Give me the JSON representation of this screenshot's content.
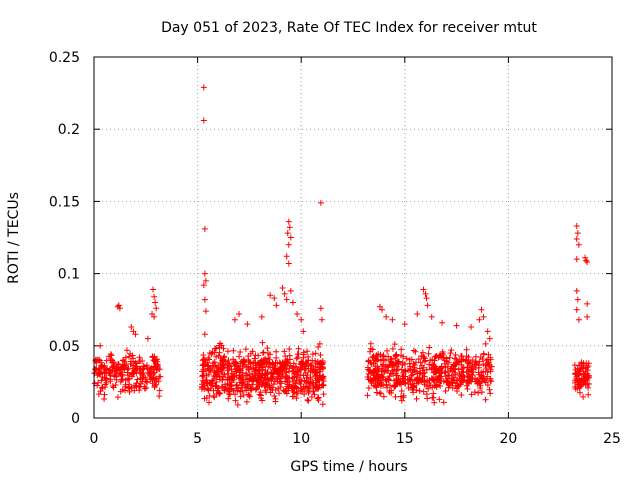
{
  "chart_data": {
    "type": "scatter",
    "title": "Day 051 of 2023, Rate Of TEC Index for receiver mtut",
    "xlabel": "GPS time / hours",
    "ylabel": "ROTI / TECUs",
    "xlim": [
      0,
      25
    ],
    "ylim": [
      0,
      0.25
    ],
    "x_ticks": [
      "0",
      "5",
      "10",
      "15",
      "20",
      "25"
    ],
    "y_ticks": [
      "0",
      "0.05",
      "0.1",
      "0.15",
      "0.2",
      "0.25"
    ],
    "grid": true,
    "marker": "plus",
    "color": "#ff0000",
    "clusters": [
      {
        "x_start": 0.0,
        "x_end": 3.2,
        "y_min": 0.012,
        "y_max": 0.05,
        "n": 260
      },
      {
        "x_start": 5.2,
        "x_end": 11.1,
        "y_min": 0.006,
        "y_max": 0.055,
        "n": 700
      },
      {
        "x_start": 13.2,
        "x_end": 19.2,
        "y_min": 0.008,
        "y_max": 0.055,
        "n": 560
      },
      {
        "x_start": 23.2,
        "x_end": 23.9,
        "y_min": 0.012,
        "y_max": 0.045,
        "n": 80
      }
    ],
    "points": [
      {
        "x": 5.3,
        "y": 0.229
      },
      {
        "x": 5.3,
        "y": 0.206
      },
      {
        "x": 10.95,
        "y": 0.149
      },
      {
        "x": 5.35,
        "y": 0.131
      },
      {
        "x": 9.4,
        "y": 0.136
      },
      {
        "x": 9.45,
        "y": 0.132
      },
      {
        "x": 9.35,
        "y": 0.128
      },
      {
        "x": 9.5,
        "y": 0.125
      },
      {
        "x": 9.4,
        "y": 0.12
      },
      {
        "x": 9.3,
        "y": 0.112
      },
      {
        "x": 9.4,
        "y": 0.107
      },
      {
        "x": 5.35,
        "y": 0.1
      },
      {
        "x": 5.4,
        "y": 0.095
      },
      {
        "x": 5.3,
        "y": 0.092
      },
      {
        "x": 5.35,
        "y": 0.082
      },
      {
        "x": 5.4,
        "y": 0.074
      },
      {
        "x": 5.35,
        "y": 0.058
      },
      {
        "x": 10.95,
        "y": 0.076
      },
      {
        "x": 11.0,
        "y": 0.068
      },
      {
        "x": 23.3,
        "y": 0.133
      },
      {
        "x": 23.35,
        "y": 0.128
      },
      {
        "x": 23.3,
        "y": 0.124
      },
      {
        "x": 23.4,
        "y": 0.12
      },
      {
        "x": 23.3,
        "y": 0.11
      },
      {
        "x": 23.7,
        "y": 0.111
      },
      {
        "x": 23.75,
        "y": 0.109
      },
      {
        "x": 23.8,
        "y": 0.108
      },
      {
        "x": 23.3,
        "y": 0.088
      },
      {
        "x": 23.35,
        "y": 0.082
      },
      {
        "x": 23.3,
        "y": 0.075
      },
      {
        "x": 23.8,
        "y": 0.079
      },
      {
        "x": 23.8,
        "y": 0.07
      },
      {
        "x": 23.4,
        "y": 0.068
      },
      {
        "x": 1.15,
        "y": 0.077
      },
      {
        "x": 1.25,
        "y": 0.076
      },
      {
        "x": 1.2,
        "y": 0.078
      },
      {
        "x": 2.85,
        "y": 0.089
      },
      {
        "x": 2.9,
        "y": 0.084
      },
      {
        "x": 2.95,
        "y": 0.08
      },
      {
        "x": 3.0,
        "y": 0.076
      },
      {
        "x": 2.8,
        "y": 0.072
      },
      {
        "x": 2.9,
        "y": 0.07
      },
      {
        "x": 1.8,
        "y": 0.063
      },
      {
        "x": 1.9,
        "y": 0.06
      },
      {
        "x": 2.0,
        "y": 0.058
      },
      {
        "x": 0.3,
        "y": 0.05
      },
      {
        "x": 2.6,
        "y": 0.055
      },
      {
        "x": 6.8,
        "y": 0.068
      },
      {
        "x": 7.0,
        "y": 0.072
      },
      {
        "x": 7.4,
        "y": 0.065
      },
      {
        "x": 8.1,
        "y": 0.07
      },
      {
        "x": 8.5,
        "y": 0.085
      },
      {
        "x": 8.7,
        "y": 0.083
      },
      {
        "x": 8.8,
        "y": 0.078
      },
      {
        "x": 9.1,
        "y": 0.09
      },
      {
        "x": 9.2,
        "y": 0.086
      },
      {
        "x": 9.3,
        "y": 0.082
      },
      {
        "x": 9.5,
        "y": 0.088
      },
      {
        "x": 9.6,
        "y": 0.08
      },
      {
        "x": 9.8,
        "y": 0.072
      },
      {
        "x": 10.0,
        "y": 0.068
      },
      {
        "x": 10.1,
        "y": 0.06
      },
      {
        "x": 13.8,
        "y": 0.077
      },
      {
        "x": 13.9,
        "y": 0.075
      },
      {
        "x": 14.1,
        "y": 0.07
      },
      {
        "x": 14.4,
        "y": 0.068
      },
      {
        "x": 15.0,
        "y": 0.065
      },
      {
        "x": 15.6,
        "y": 0.072
      },
      {
        "x": 15.9,
        "y": 0.089
      },
      {
        "x": 16.0,
        "y": 0.086
      },
      {
        "x": 16.05,
        "y": 0.083
      },
      {
        "x": 16.1,
        "y": 0.078
      },
      {
        "x": 16.3,
        "y": 0.07
      },
      {
        "x": 16.8,
        "y": 0.066
      },
      {
        "x": 17.5,
        "y": 0.064
      },
      {
        "x": 18.2,
        "y": 0.063
      },
      {
        "x": 18.6,
        "y": 0.068
      },
      {
        "x": 18.7,
        "y": 0.075
      },
      {
        "x": 18.8,
        "y": 0.07
      },
      {
        "x": 19.0,
        "y": 0.06
      },
      {
        "x": 19.1,
        "y": 0.055
      }
    ]
  }
}
